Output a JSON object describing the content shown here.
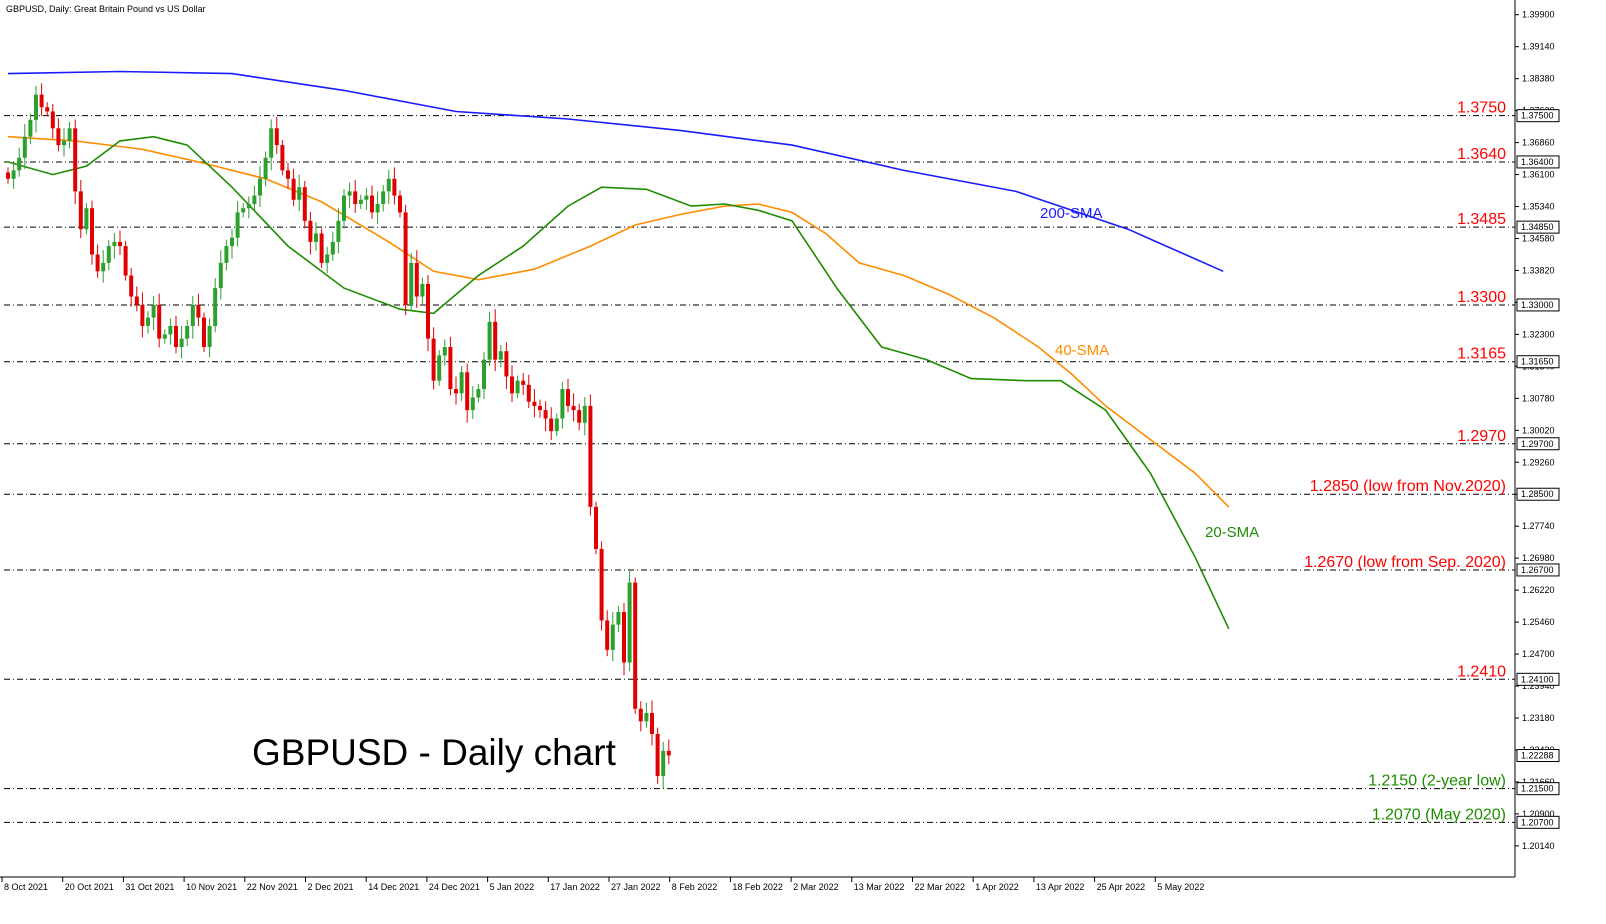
{
  "chart_data": {
    "type": "candlestick",
    "title": "GBPUSD, Daily:  Great Britain Pound vs US Dollar",
    "overlay_title": "GBPUSD - Daily chart",
    "x_tick_labels": [
      "8 Oct 2021",
      "20 Oct 2021",
      "31 Oct 2021",
      "10 Nov 2021",
      "22 Nov 2021",
      "2 Dec 2021",
      "14 Dec 2021",
      "24 Dec 2021",
      "5 Jan 2022",
      "17 Jan 2022",
      "27 Jan 2022",
      "8 Feb 2022",
      "18 Feb 2022",
      "2 Mar 2022",
      "13 Mar 2022",
      "22 Mar 2022",
      "1 Apr 2022",
      "13 Apr 2022",
      "25 Apr 2022",
      "5 May 2022"
    ],
    "y_tick_labels": [
      "1.39900",
      "1.39140",
      "1.38380",
      "1.37620",
      "1.36860",
      "1.36100",
      "1.35340",
      "1.34580",
      "1.33820",
      "1.33060",
      "1.32300",
      "1.31540",
      "1.30780",
      "1.30020",
      "1.29260",
      "1.28500",
      "1.27740",
      "1.26980",
      "1.26220",
      "1.25460",
      "1.24700",
      "1.23940",
      "1.23180",
      "1.22420",
      "1.21660",
      "1.20900",
      "1.20140"
    ],
    "ylim": [
      1.194,
      1.4025
    ],
    "price_tags": [
      "1.37500",
      "1.36400",
      "1.34850",
      "1.33000",
      "1.31650",
      "1.29700",
      "1.28500",
      "1.26700",
      "1.24100",
      "1.22288",
      "1.21500",
      "1.20700"
    ],
    "levels": [
      {
        "value": 1.375,
        "label": "1.3750",
        "color": "#ff0000"
      },
      {
        "value": 1.364,
        "label": "1.3640",
        "color": "#ff0000"
      },
      {
        "value": 1.3485,
        "label": "1.3485",
        "color": "#ff0000"
      },
      {
        "value": 1.33,
        "label": "1.3300",
        "color": "#ff0000"
      },
      {
        "value": 1.3165,
        "label": "1.3165",
        "color": "#ff0000"
      },
      {
        "value": 1.297,
        "label": "1.2970",
        "color": "#ff0000"
      },
      {
        "value": 1.285,
        "label": "1.2850 (low from Nov.2020)",
        "color": "#ff0000"
      },
      {
        "value": 1.267,
        "label": "1.2670 (low from Sep. 2020)",
        "color": "#ff0000"
      },
      {
        "value": 1.241,
        "label": "1.2410",
        "color": "#ff0000"
      },
      {
        "value": 1.215,
        "label": "1.2150 (2-year low)",
        "color": "#1e8c00"
      },
      {
        "value": 1.207,
        "label": "1.2070 (May 2020)",
        "color": "#1e8c00"
      }
    ],
    "current_price": 1.22288,
    "series": [
      {
        "name": "200-SMA",
        "color": "#1a1aff",
        "points": [
          [
            0,
            1.385
          ],
          [
            20,
            1.3855
          ],
          [
            40,
            1.385
          ],
          [
            60,
            1.381
          ],
          [
            80,
            1.376
          ],
          [
            100,
            1.3742
          ],
          [
            120,
            1.3715
          ],
          [
            140,
            1.368
          ],
          [
            160,
            1.362
          ],
          [
            180,
            1.357
          ],
          [
            200,
            1.348
          ],
          [
            217,
            1.338
          ]
        ]
      },
      {
        "name": "40-SMA",
        "color": "#ff8c00",
        "points": [
          [
            0,
            1.37
          ],
          [
            12,
            1.369
          ],
          [
            24,
            1.367
          ],
          [
            34,
            1.364
          ],
          [
            46,
            1.36
          ],
          [
            56,
            1.3545
          ],
          [
            68,
            1.345
          ],
          [
            76,
            1.338
          ],
          [
            84,
            1.336
          ],
          [
            94,
            1.3385
          ],
          [
            104,
            1.344
          ],
          [
            112,
            1.349
          ],
          [
            120,
            1.3515
          ],
          [
            128,
            1.3535
          ],
          [
            134,
            1.354
          ],
          [
            140,
            1.352
          ],
          [
            146,
            1.347
          ],
          [
            152,
            1.34
          ],
          [
            160,
            1.337
          ],
          [
            168,
            1.3325
          ],
          [
            176,
            1.327
          ],
          [
            184,
            1.32
          ],
          [
            190,
            1.3135
          ],
          [
            196,
            1.306
          ],
          [
            204,
            1.298
          ],
          [
            212,
            1.29
          ],
          [
            218,
            1.282
          ]
        ]
      },
      {
        "name": "20-SMA",
        "color": "#1e8c00",
        "points": [
          [
            0,
            1.364
          ],
          [
            8,
            1.361
          ],
          [
            14,
            1.363
          ],
          [
            20,
            1.369
          ],
          [
            26,
            1.37
          ],
          [
            32,
            1.368
          ],
          [
            40,
            1.358
          ],
          [
            50,
            1.344
          ],
          [
            60,
            1.334
          ],
          [
            70,
            1.329
          ],
          [
            76,
            1.328
          ],
          [
            84,
            1.337
          ],
          [
            92,
            1.344
          ],
          [
            100,
            1.3535
          ],
          [
            106,
            1.358
          ],
          [
            114,
            1.3575
          ],
          [
            122,
            1.3535
          ],
          [
            128,
            1.354
          ],
          [
            134,
            1.3525
          ],
          [
            140,
            1.35
          ],
          [
            148,
            1.334
          ],
          [
            156,
            1.32
          ],
          [
            164,
            1.317
          ],
          [
            172,
            1.3125
          ],
          [
            182,
            1.312
          ],
          [
            188,
            1.312
          ],
          [
            196,
            1.305
          ],
          [
            204,
            1.29
          ],
          [
            212,
            1.27
          ],
          [
            218,
            1.253
          ]
        ]
      }
    ],
    "sma_labels": [
      {
        "text": "200-SMA",
        "color": "#1a1aff"
      },
      {
        "text": "40-SMA",
        "color": "#ff8c00"
      },
      {
        "text": "20-SMA",
        "color": "#1e8c00"
      }
    ],
    "candles_close": [
      1.36,
      1.362,
      1.365,
      1.37,
      1.374,
      1.38,
      1.377,
      1.376,
      1.372,
      1.368,
      1.369,
      1.372,
      1.357,
      1.348,
      1.353,
      1.342,
      1.338,
      1.34,
      1.344,
      1.345,
      1.344,
      1.337,
      1.332,
      1.33,
      1.325,
      1.327,
      1.33,
      1.322,
      1.323,
      1.325,
      1.32,
      1.322,
      1.325,
      1.33,
      1.327,
      1.32,
      1.325,
      1.334,
      1.34,
      1.344,
      1.346,
      1.352,
      1.353,
      1.354,
      1.356,
      1.36,
      1.365,
      1.372,
      1.368,
      1.362,
      1.36,
      1.355,
      1.358,
      1.35,
      1.345,
      1.347,
      1.34,
      1.342,
      1.345,
      1.35,
      1.356,
      1.357,
      1.354,
      1.355,
      1.356,
      1.352,
      1.354,
      1.357,
      1.36,
      1.356,
      1.352,
      1.33,
      1.34,
      1.332,
      1.335,
      1.322,
      1.312,
      1.318,
      1.32,
      1.31,
      1.309,
      1.314,
      1.305,
      1.308,
      1.31,
      1.317,
      1.326,
      1.317,
      1.319,
      1.313,
      1.309,
      1.312,
      1.311,
      1.307,
      1.306,
      1.305,
      1.303,
      1.3,
      1.303,
      1.31,
      1.306,
      1.305,
      1.302,
      1.306,
      1.282,
      1.272,
      1.255,
      1.248,
      1.254,
      1.257,
      1.245,
      1.264,
      1.234,
      1.231,
      1.233,
      1.228,
      1.218,
      1.224,
      1.2229
    ]
  }
}
